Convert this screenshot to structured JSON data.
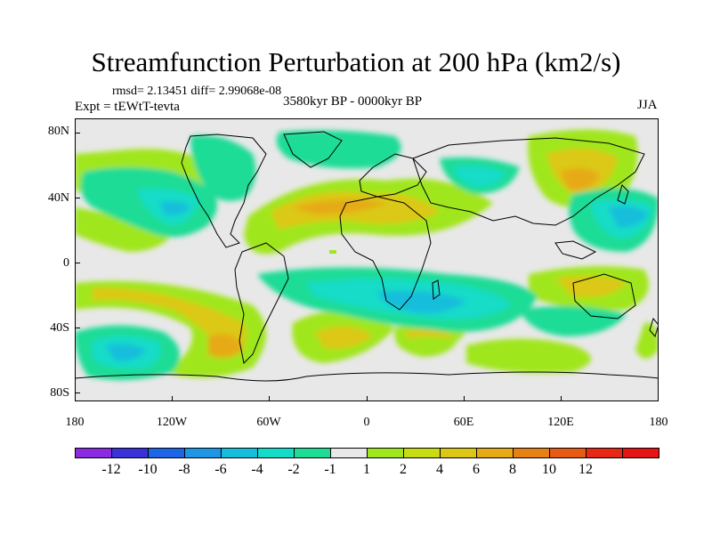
{
  "title": "Streamfunction Perturbation at 200 hPa (km2/s)",
  "stats": "rmsd= 2.13451 diff= 2.99068e-08",
  "experiment": "Expt = tEWtT-tevta",
  "period": "3580kyr BP - 0000kyr BP",
  "season": "JJA",
  "y_ticks": [
    "80N",
    "40N",
    "0",
    "40S",
    "80S"
  ],
  "x_ticks": [
    "180",
    "120W",
    "60W",
    "0",
    "60E",
    "120E",
    "180"
  ],
  "colorbar": {
    "colors": [
      "#8a2be2",
      "#3a32d8",
      "#1e64e6",
      "#1e96e6",
      "#14bedc",
      "#14dcc8",
      "#1edc96",
      "#e8e8e8",
      "#a0e61e",
      "#c8dc14",
      "#dcc814",
      "#e6aa14",
      "#e68214",
      "#e65a14",
      "#e62814",
      "#e61414"
    ],
    "labels": [
      "-12",
      "-10",
      "-8",
      "-6",
      "-4",
      "-2",
      "-1",
      "1",
      "2",
      "4",
      "6",
      "8",
      "10",
      "12"
    ]
  }
}
